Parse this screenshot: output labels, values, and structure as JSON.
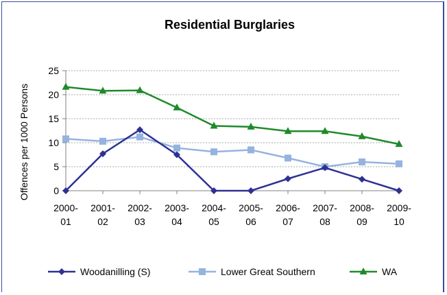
{
  "chart_data": {
    "type": "line",
    "title": "Residential Burglaries",
    "xlabel": "",
    "ylabel": "Offences per 1000 Persons",
    "ylim": [
      0,
      25
    ],
    "yticks": [
      "0",
      "5",
      "10",
      "15",
      "20",
      "25"
    ],
    "categories": [
      [
        "2000-",
        "01"
      ],
      [
        "2001-",
        "02"
      ],
      [
        "2002-",
        "03"
      ],
      [
        "2003-",
        "04"
      ],
      [
        "2004-",
        "05"
      ],
      [
        "2005-",
        "06"
      ],
      [
        "2006-",
        "07"
      ],
      [
        "2007-",
        "08"
      ],
      [
        "2008-",
        "09"
      ],
      [
        "2009-",
        "10"
      ]
    ],
    "grid": true,
    "legend_position": "bottom",
    "series": [
      {
        "name": "Woodanilling (S)",
        "color": "#2e3192",
        "marker": "diamond",
        "values": [
          0,
          7.7,
          12.7,
          7.5,
          0,
          0,
          2.5,
          4.8,
          2.4,
          0
        ]
      },
      {
        "name": "Lower Great Southern",
        "color": "#95b3e0",
        "marker": "square",
        "values": [
          10.8,
          10.3,
          11.2,
          8.9,
          8.1,
          8.5,
          6.8,
          5.0,
          6.0,
          5.6
        ]
      },
      {
        "name": "WA",
        "color": "#1f8a2a",
        "marker": "triangle",
        "values": [
          21.6,
          20.8,
          20.9,
          17.3,
          13.5,
          13.3,
          12.4,
          12.4,
          11.3,
          9.7
        ]
      }
    ]
  }
}
